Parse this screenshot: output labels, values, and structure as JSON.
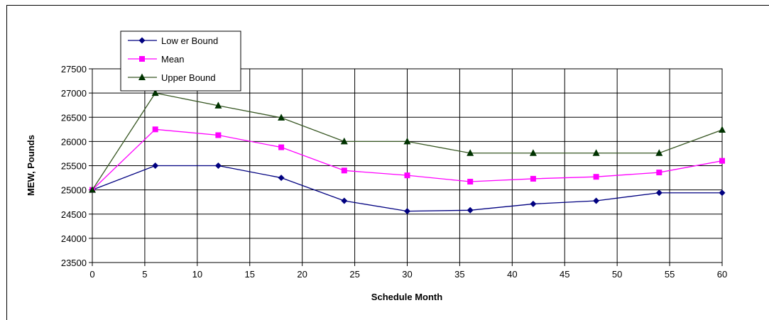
{
  "chart_data": {
    "type": "line",
    "title": "",
    "xlabel": "Schedule Month",
    "ylabel": "MEW, Pounds",
    "xlim": [
      0,
      60
    ],
    "ylim": [
      23500,
      27500
    ],
    "xticks": [
      0,
      5,
      10,
      15,
      20,
      25,
      30,
      35,
      40,
      45,
      50,
      55,
      60
    ],
    "yticks": [
      23500,
      24000,
      24500,
      25000,
      25500,
      26000,
      26500,
      27000,
      27500
    ],
    "grid": true,
    "legend_position": "top-left",
    "x": [
      0,
      6,
      12,
      18,
      24,
      30,
      36,
      42,
      48,
      54,
      60
    ],
    "series": [
      {
        "name": "Low er Bound",
        "color": "#000080",
        "marker": "diamond",
        "values": [
          25000,
          25500,
          25500,
          25250,
          24775,
          24560,
          24580,
          24710,
          24775,
          24940,
          24940
        ]
      },
      {
        "name": "Mean",
        "color": "#FF00FF",
        "marker": "square",
        "values": [
          25000,
          26250,
          26130,
          25880,
          25400,
          25300,
          25170,
          25230,
          25270,
          25360,
          25600
        ]
      },
      {
        "name": "Upper Bound",
        "color": "#385723",
        "marker_color": "#003300",
        "marker": "triangle",
        "values": [
          25000,
          27000,
          26740,
          26490,
          26000,
          26000,
          25760,
          25760,
          25760,
          25760,
          26240
        ]
      }
    ]
  }
}
